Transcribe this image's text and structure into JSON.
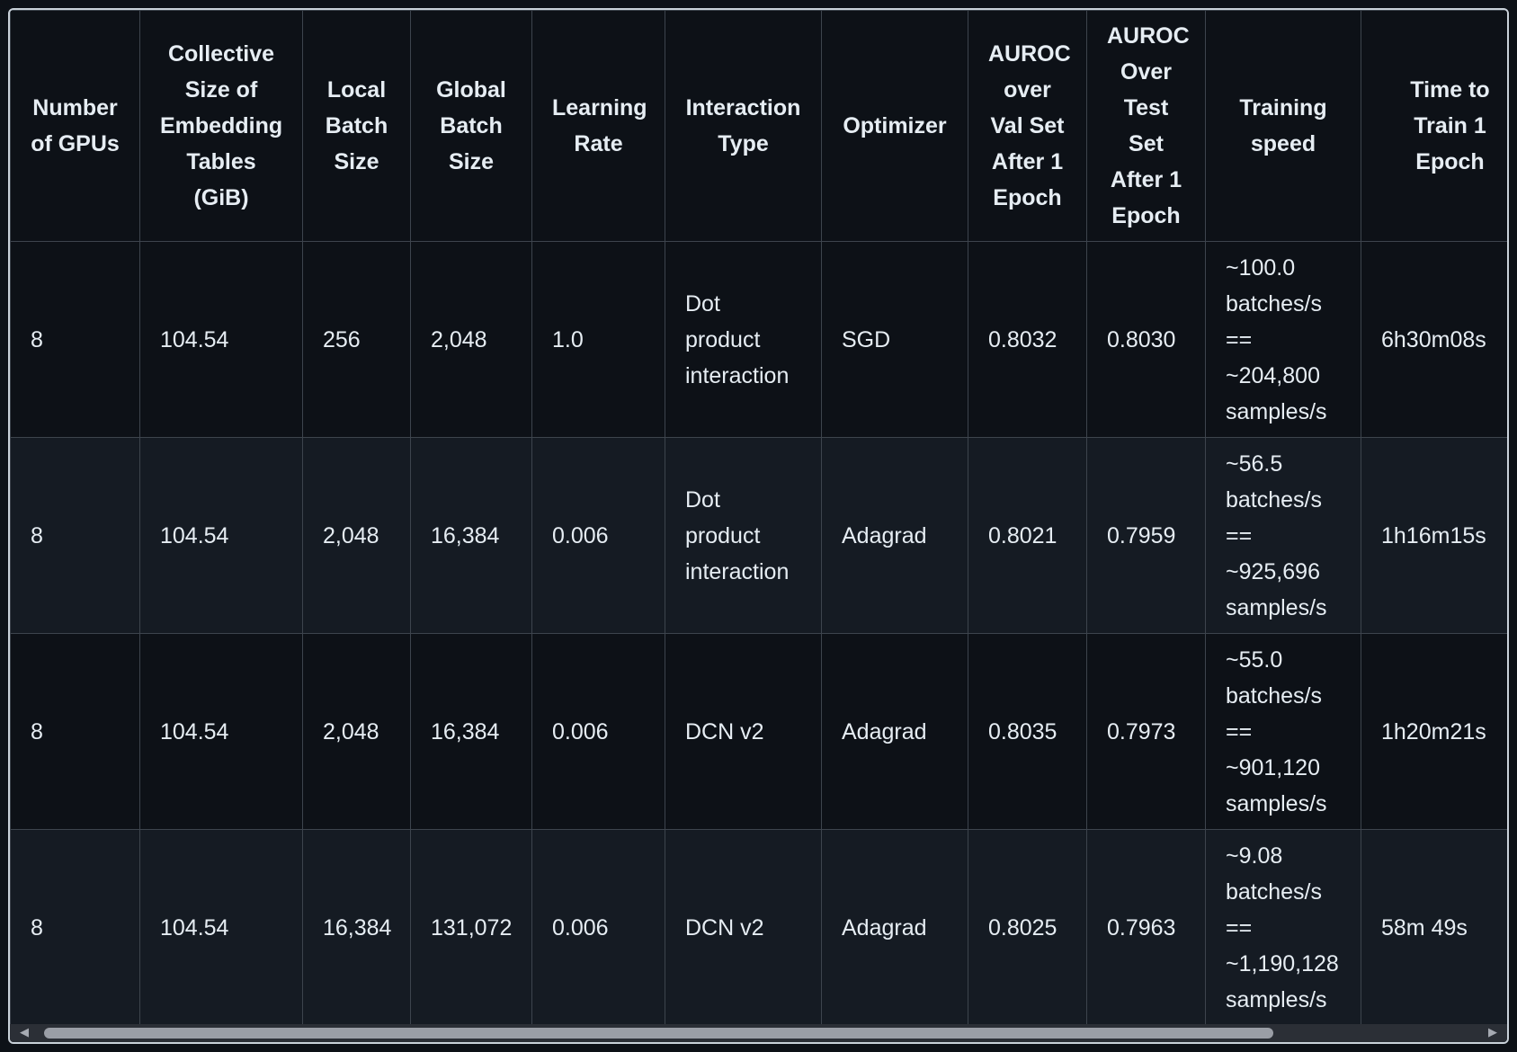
{
  "table": {
    "headers": [
      "Number of GPUs",
      "Collective Size of Embedding Tables (GiB)",
      "Local Batch Size",
      "Global Batch Size",
      "Learning Rate",
      "Interaction Type",
      "Optimizer",
      "AUROC over Val Set After 1 Epoch",
      "AUROC Over Test Set After 1 Epoch",
      "Training speed",
      "Time to Train 1 Epoch"
    ],
    "rows": [
      [
        "8",
        "104.54",
        "256",
        "2,048",
        "1.0",
        "Dot product interaction",
        "SGD",
        "0.8032",
        "0.8030",
        "~100.0 batches/s == ~204,800 samples/s",
        "6h30m08s"
      ],
      [
        "8",
        "104.54",
        "2,048",
        "16,384",
        "0.006",
        "Dot product interaction",
        "Adagrad",
        "0.8021",
        "0.7959",
        "~56.5 batches/s == ~925,696 samples/s",
        "1h16m15s"
      ],
      [
        "8",
        "104.54",
        "2,048",
        "16,384",
        "0.006",
        "DCN v2",
        "Adagrad",
        "0.8035",
        "0.7973",
        "~55.0 batches/s == ~901,120 samples/s",
        "1h20m21s"
      ],
      [
        "8",
        "104.54",
        "16,384",
        "131,072",
        "0.006",
        "DCN v2",
        "Adagrad",
        "0.8025",
        "0.7963",
        "~9.08 batches/s == ~1,190,128 samples/s",
        "58m 49s"
      ]
    ]
  },
  "scrollbar": {
    "left_arrow_icon": "chevron-left-icon",
    "right_arrow_icon": "chevron-right-icon",
    "position_fraction": 0.0,
    "visible_fraction": 0.83
  },
  "colors": {
    "background": "#0d1117",
    "alt_row": "#151b23",
    "border": "#3d444d",
    "text": "#e6edf3"
  }
}
